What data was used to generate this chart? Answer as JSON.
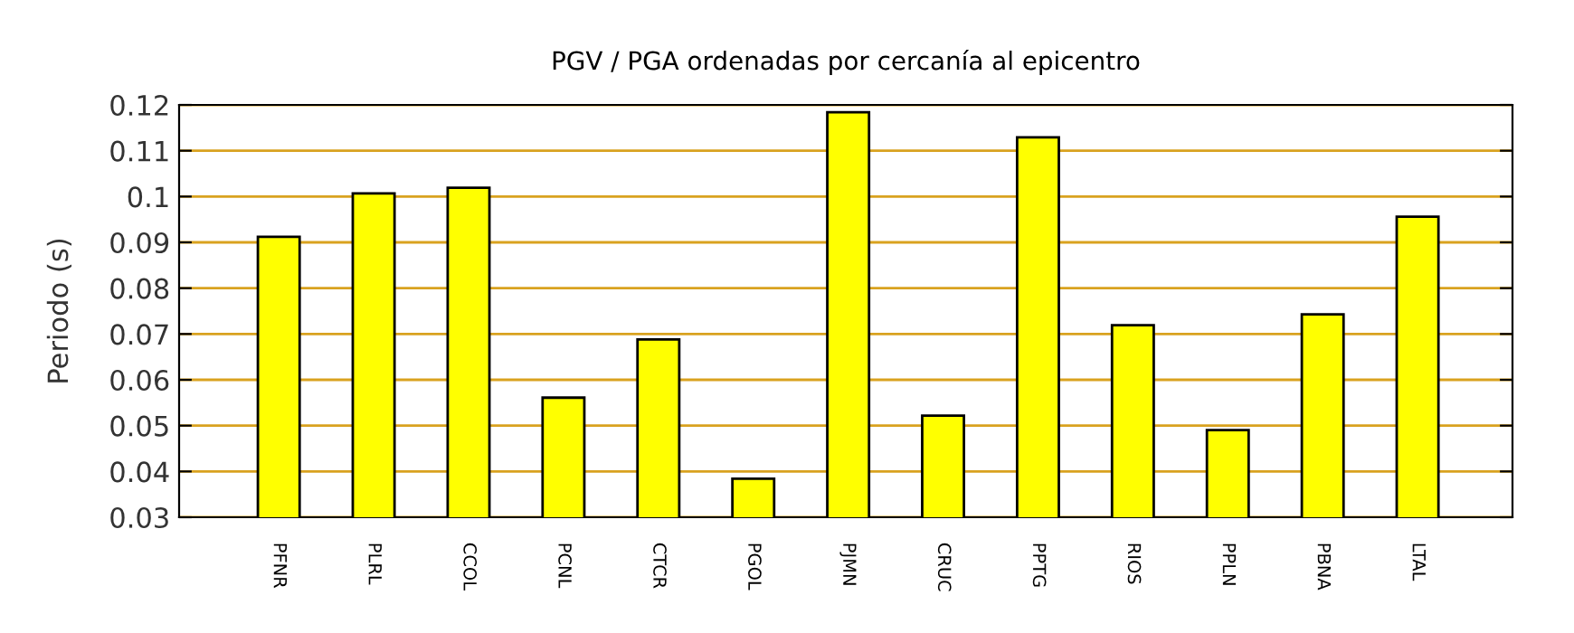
{
  "chart_data": {
    "type": "bar",
    "title": "PGV / PGA ordenadas por cercanía al epicentro",
    "ylabel": "Periodo (s)",
    "categories": [
      "PFNR",
      "PLRL",
      "CCOL",
      "PCNL",
      "CTCR",
      "PGOL",
      "PJMN",
      "CRUC",
      "PPTG",
      "RIOS",
      "PPLN",
      "PBNA",
      "LTAL"
    ],
    "values": [
      0.0912,
      0.1007,
      0.1019,
      0.0561,
      0.0688,
      0.0384,
      0.1184,
      0.0522,
      0.1129,
      0.0719,
      0.049,
      0.0743,
      0.0956
    ],
    "color": "#ffff00",
    "ylim": [
      0.03,
      0.12
    ],
    "yticks": [
      0.03,
      0.04,
      0.05,
      0.06,
      0.07,
      0.08,
      0.09,
      0.1,
      0.11,
      0.12
    ],
    "grid": "y",
    "legend": false
  }
}
